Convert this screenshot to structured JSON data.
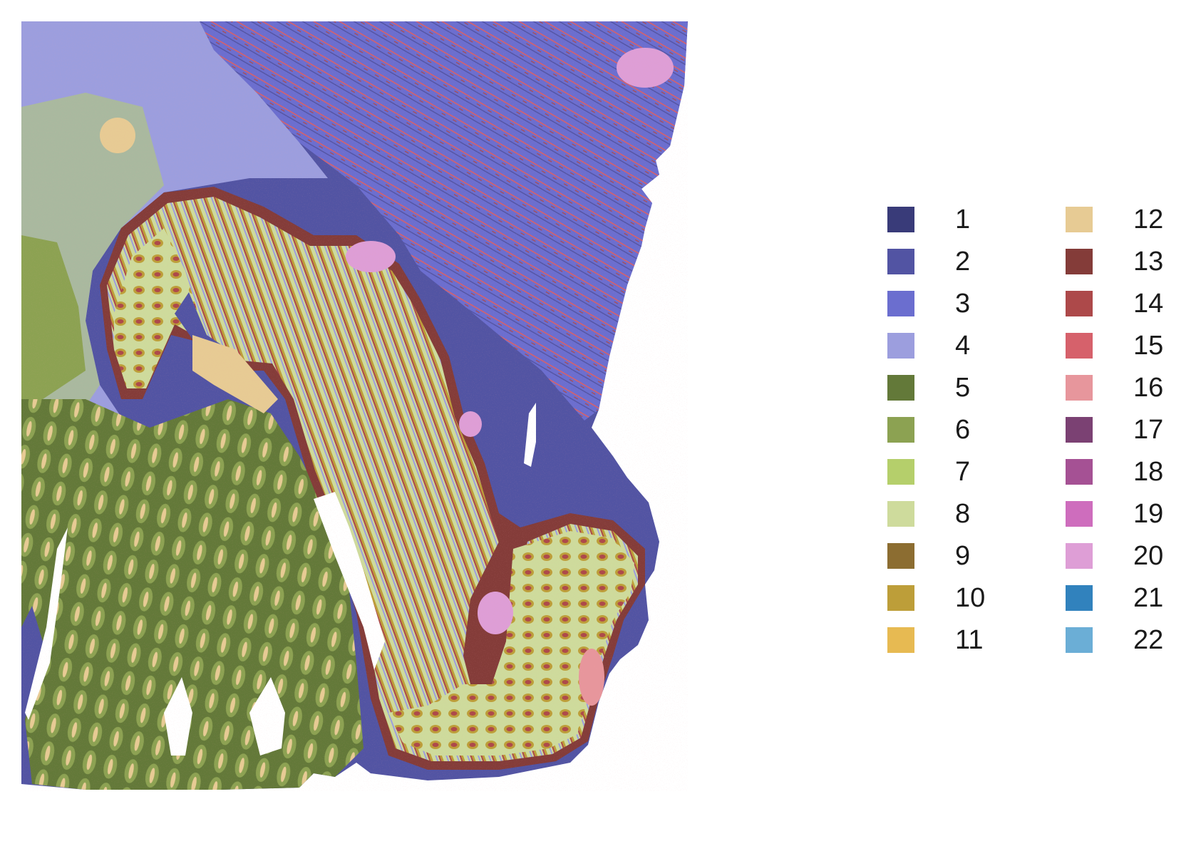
{
  "chart_data": {
    "type": "heatmap",
    "title": "",
    "xlabel": "",
    "ylabel": "",
    "grid": false,
    "axes_visible": false,
    "legend_placement": "right",
    "legend_columns": 2,
    "clusters": [
      {
        "label": "1",
        "color": "#393b79"
      },
      {
        "label": "2",
        "color": "#5254a3"
      },
      {
        "label": "3",
        "color": "#6b6ecf"
      },
      {
        "label": "4",
        "color": "#9c9ede"
      },
      {
        "label": "5",
        "color": "#637939"
      },
      {
        "label": "6",
        "color": "#8ca252"
      },
      {
        "label": "7",
        "color": "#b5cf6b"
      },
      {
        "label": "8",
        "color": "#cedb9c"
      },
      {
        "label": "9",
        "color": "#8c6d31"
      },
      {
        "label": "10",
        "color": "#bd9e39"
      },
      {
        "label": "11",
        "color": "#e7ba52"
      },
      {
        "label": "12",
        "color": "#e7cb94"
      },
      {
        "label": "13",
        "color": "#843c39"
      },
      {
        "label": "14",
        "color": "#ad494a"
      },
      {
        "label": "15",
        "color": "#d6616b"
      },
      {
        "label": "16",
        "color": "#e7969c"
      },
      {
        "label": "17",
        "color": "#7b4173"
      },
      {
        "label": "18",
        "color": "#a55194"
      },
      {
        "label": "19",
        "color": "#ce6dbd"
      },
      {
        "label": "20",
        "color": "#de9ed6"
      },
      {
        "label": "21",
        "color": "#3182bd"
      },
      {
        "label": "22",
        "color": "#6baed6"
      }
    ]
  }
}
